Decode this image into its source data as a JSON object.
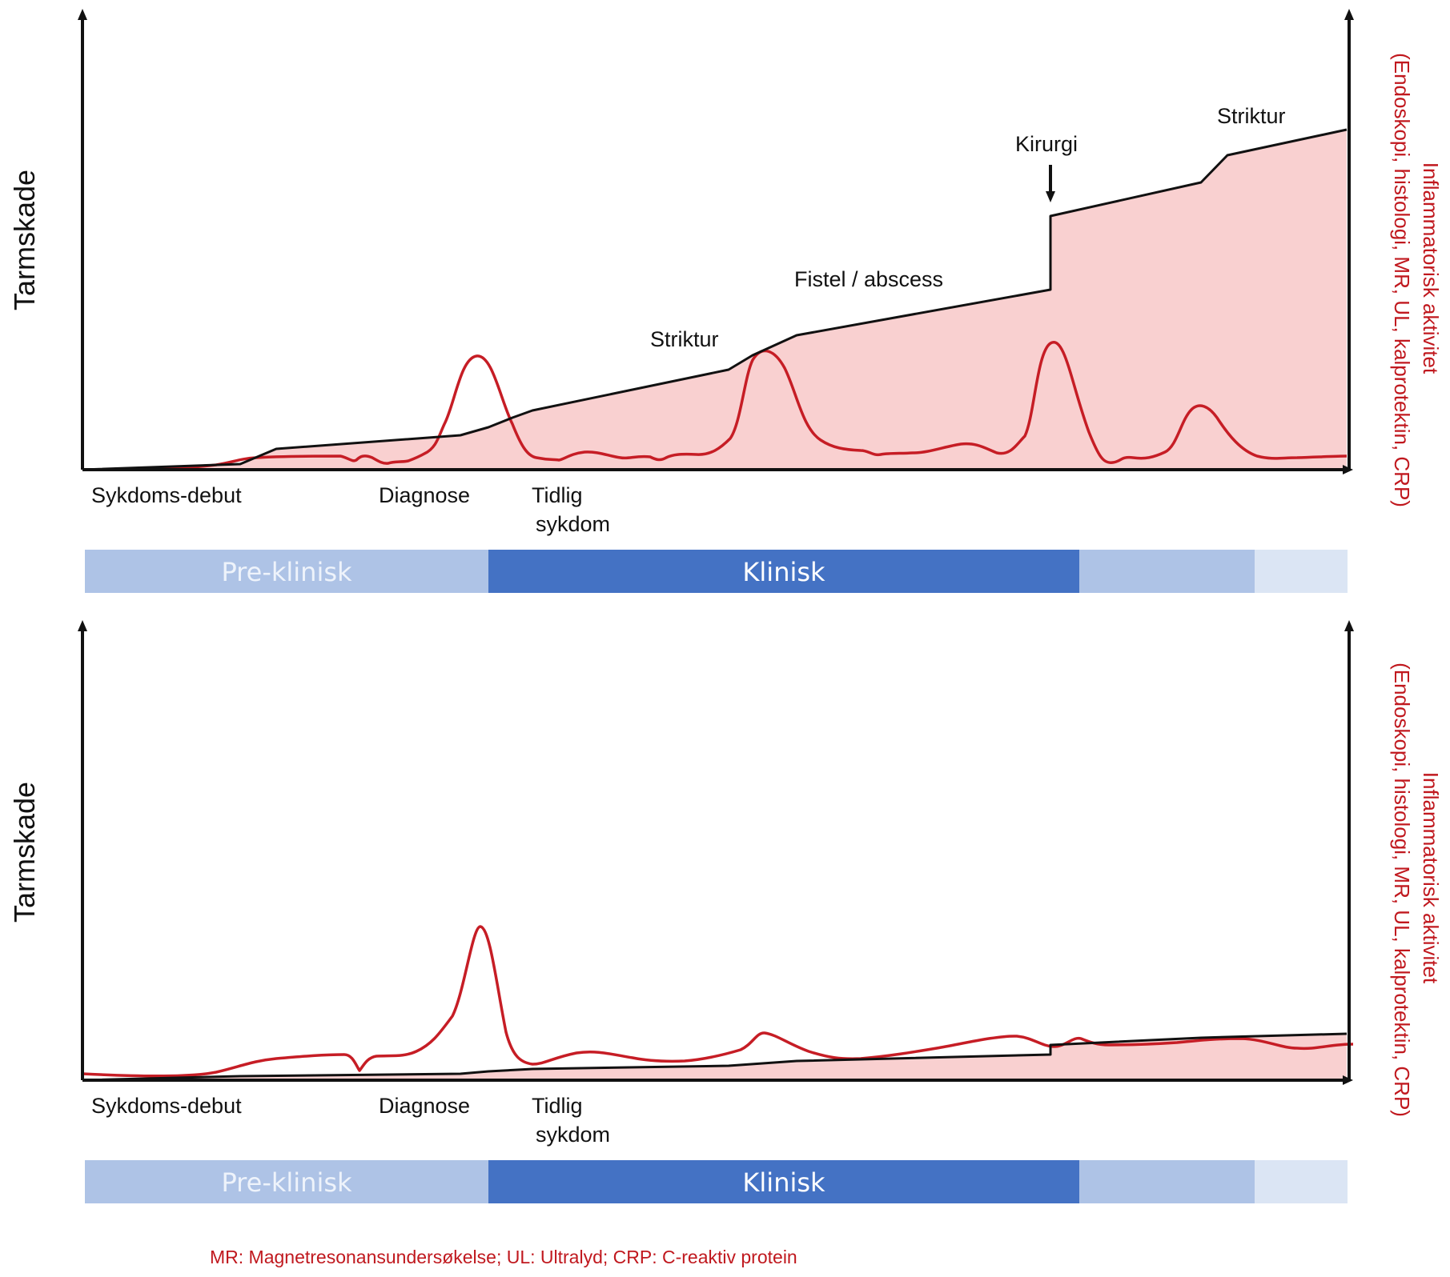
{
  "colors": {
    "damage_line": "#111111",
    "damage_fill": "#f9d0d0",
    "inflammation_line": "#c61d25",
    "axis": "#111111",
    "right_axis_text": "#c0181e",
    "footnote": "#c0181e"
  },
  "panels": [
    {
      "id": "top",
      "y_axis_title": "Tarmskade",
      "right_axis_title": "(Endoskopi, histologi, MR, UL, kalprotektin, CRP)",
      "right_axis_subtitle": "Inflammatorisk aktivitet",
      "x_labels": {
        "onset": "Sykdoms-debut",
        "diagnosis": "Diagnose",
        "early_line1": "Tidlig",
        "early_line2": "sykdom"
      },
      "annotations": {
        "stricture_1": "Striktur",
        "fistula": "Fistel / abscess",
        "surgery": "Kirurgi",
        "stricture_2": "Striktur"
      },
      "phases": [
        {
          "label": "Pre-klinisk",
          "color": "#aec3e6",
          "text_color": "#eef3fb"
        },
        {
          "label": "Klinisk",
          "color": "#4472c4",
          "text_color": "#ffffff"
        },
        {
          "label": "",
          "color": "#aec3e6",
          "text_color": "#ffffff"
        },
        {
          "label": "",
          "color": "#dbe5f4",
          "text_color": "#ffffff"
        }
      ]
    },
    {
      "id": "bottom",
      "y_axis_title": "Tarmskade",
      "right_axis_title": "(Endoskopi, histologi, MR, UL, kalprotektin, CRP)",
      "right_axis_subtitle": "Inflammatorisk aktivitet",
      "x_labels": {
        "onset": "Sykdoms-debut",
        "diagnosis": "Diagnose",
        "early_line1": "Tidlig",
        "early_line2": "sykdom"
      },
      "phases": [
        {
          "label": "Pre-klinisk",
          "color": "#aec3e6",
          "text_color": "#eef3fb"
        },
        {
          "label": "Klinisk",
          "color": "#4472c4",
          "text_color": "#ffffff"
        },
        {
          "label": "",
          "color": "#aec3e6",
          "text_color": "#ffffff"
        },
        {
          "label": "",
          "color": "#dbe5f4",
          "text_color": "#ffffff"
        }
      ]
    }
  ],
  "footnote": "MR: Magnetresonansundersøkelse; UL: Ultralyd; CRP: C-reaktiv protein"
}
